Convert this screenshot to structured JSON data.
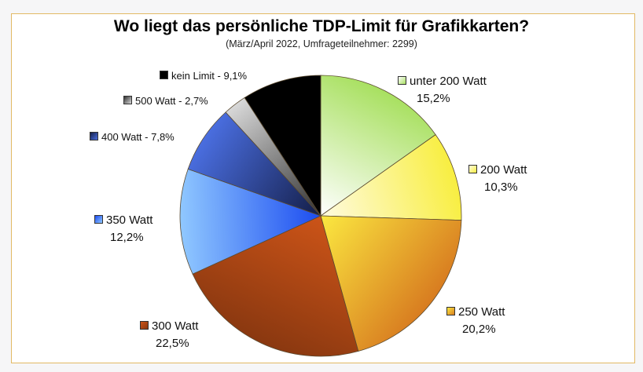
{
  "chart_data": {
    "type": "pie",
    "title": "Wo liegt das persönliche TDP-Limit für Grafikkarten?",
    "subtitle": "(März/April 2022, Umfrageteilnehmer: 2299)",
    "start": "top",
    "direction": "clockwise",
    "slices": [
      {
        "name": "unter 200 Watt",
        "value": 15.2,
        "pct": "15,2%",
        "colors": [
          "#ffffff",
          "#a8e060"
        ]
      },
      {
        "name": "200 Watt",
        "value": 10.3,
        "pct": "10,3%",
        "colors": [
          "#fffbe0",
          "#f8ee40"
        ]
      },
      {
        "name": "250 Watt",
        "value": 20.2,
        "pct": "20,2%",
        "colors": [
          "#fbe840",
          "#d87c20"
        ]
      },
      {
        "name": "300 Watt",
        "value": 22.5,
        "pct": "22,5%",
        "colors": [
          "#cc5418",
          "#8a3810"
        ]
      },
      {
        "name": "350 Watt",
        "value": 12.2,
        "pct": "12,2%",
        "colors": [
          "#1c4cf0",
          "#90c8ff"
        ]
      },
      {
        "name": "400 Watt",
        "value": 7.8,
        "pct": "7,8%",
        "colors": [
          "#141e48",
          "#4a6ee0"
        ]
      },
      {
        "name": "500 Watt",
        "value": 2.7,
        "pct": "2,7%",
        "colors": [
          "#303030",
          "#d8d8d8"
        ]
      },
      {
        "name": "kein Limit",
        "value": 9.1,
        "pct": "9,1%",
        "colors": [
          "#000000",
          "#000000"
        ]
      }
    ]
  },
  "labels": {
    "s0": {
      "name": "unter 200 Watt",
      "pct": "15,2%"
    },
    "s1": {
      "name": "200 Watt",
      "pct": "10,3%"
    },
    "s2": {
      "name": "250 Watt",
      "pct": "20,2%"
    },
    "s3": {
      "name": "300 Watt",
      "pct": "22,5%"
    },
    "s4": {
      "name": "350 Watt",
      "pct": "12,2%"
    },
    "s5": "400 Watt - 7,8%",
    "s6": "500 Watt - 2,7%",
    "s7": "kein Limit - 9,1%"
  }
}
